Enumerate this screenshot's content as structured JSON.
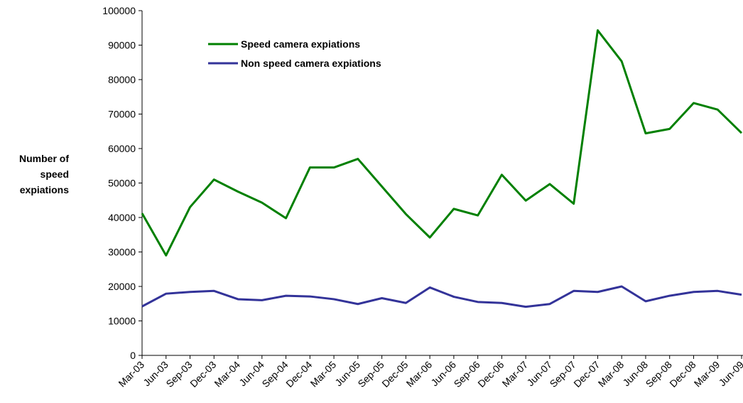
{
  "chart_data": {
    "type": "line",
    "y_label": "Number of speed expiations",
    "categories": [
      "Mar-03",
      "Jun-03",
      "Sep-03",
      "Dec-03",
      "Mar-04",
      "Jun-04",
      "Sep-04",
      "Dec-04",
      "Mar-05",
      "Jun-05",
      "Sep-05",
      "Dec-05",
      "Mar-06",
      "Jun-06",
      "Sep-06",
      "Dec-06",
      "Mar-07",
      "Jun-07",
      "Sep-07",
      "Dec-07",
      "Mar-08",
      "Jun-08",
      "Sep-08",
      "Dec-08",
      "Mar-09",
      "Jun-09"
    ],
    "series": [
      {
        "name": "Speed camera expiations",
        "color": "#008000",
        "values": [
          41200,
          29000,
          43000,
          51000,
          47500,
          44300,
          39800,
          54500,
          54500,
          57000,
          49000,
          41000,
          34200,
          42500,
          40600,
          52400,
          44900,
          49700,
          44000,
          94300,
          85300,
          64400,
          65700,
          73200,
          71300,
          64500
        ]
      },
      {
        "name": "Non speed camera expiations",
        "color": "#333399",
        "values": [
          14200,
          17900,
          18400,
          18700,
          16300,
          16000,
          17300,
          17100,
          16300,
          14900,
          16600,
          15200,
          19700,
          17000,
          15500,
          15200,
          14100,
          14900,
          18700,
          18400,
          20000,
          15700,
          17300,
          18400,
          18700,
          17600
        ]
      }
    ],
    "ylim": [
      0,
      100000
    ],
    "yticks": [
      0,
      10000,
      20000,
      30000,
      40000,
      50000,
      60000,
      70000,
      80000,
      90000,
      100000
    ],
    "grid": false,
    "legend": "upper left"
  }
}
